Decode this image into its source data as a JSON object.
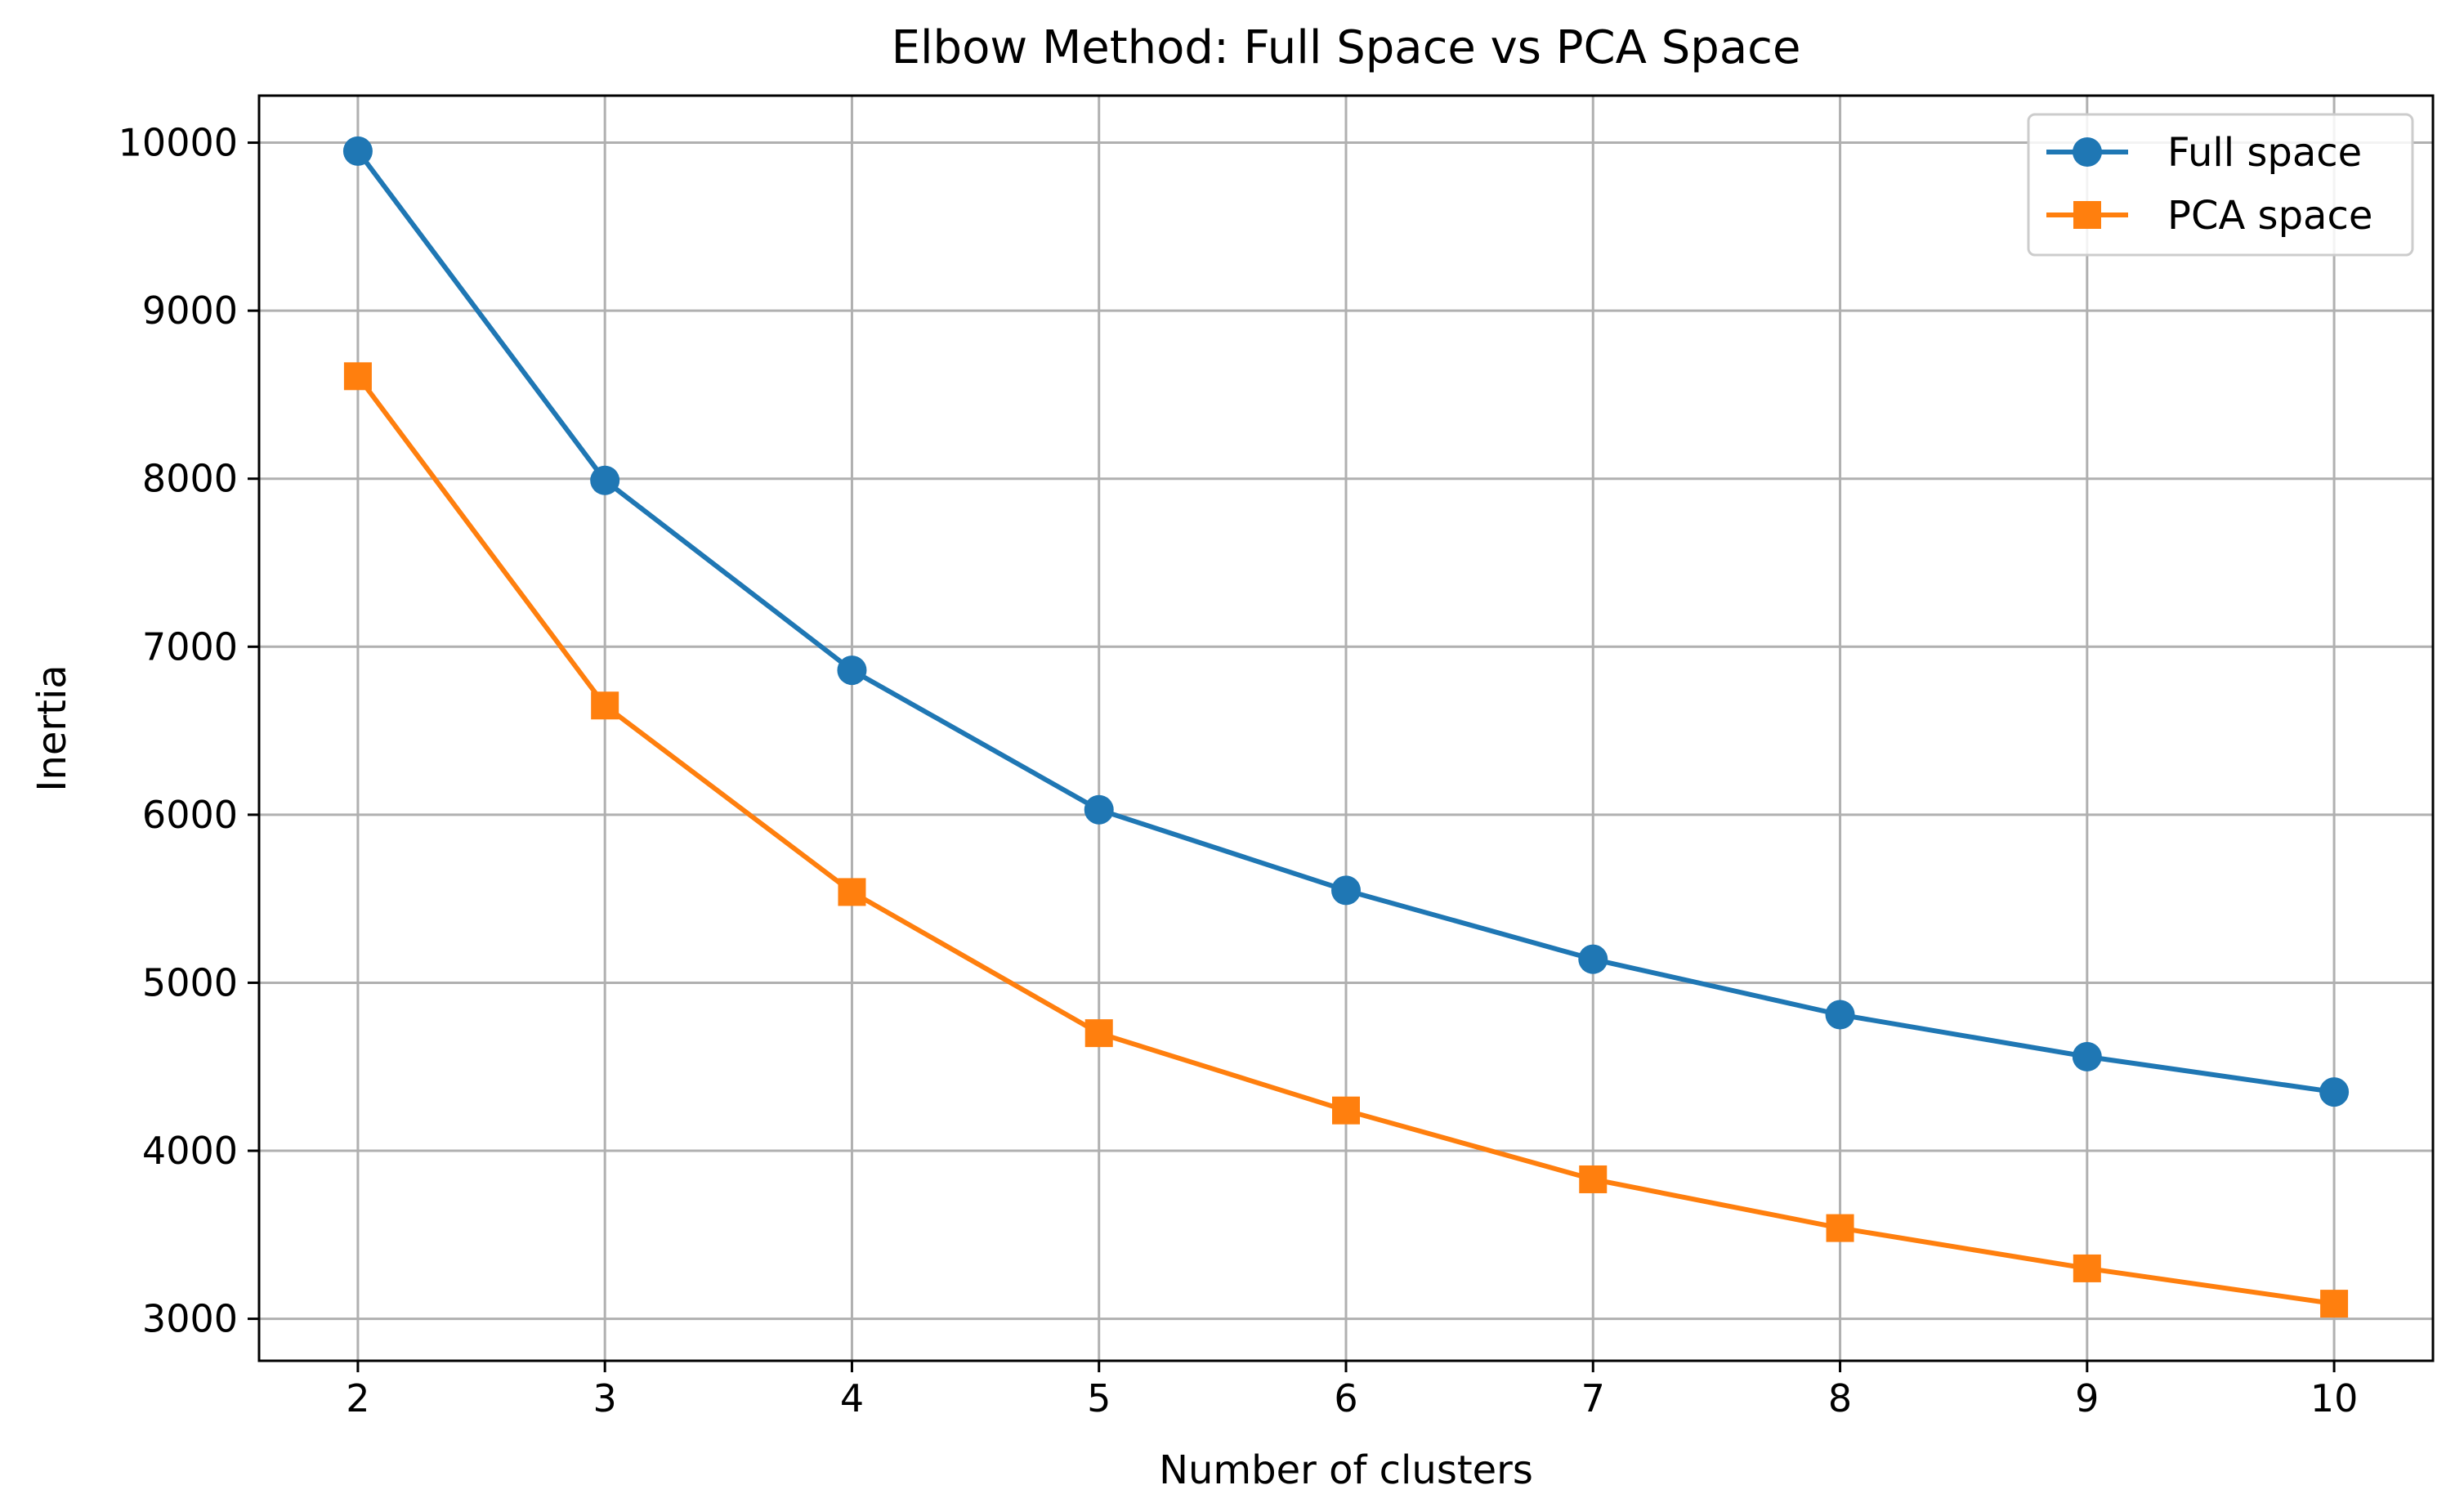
{
  "chart_data": {
    "type": "line",
    "title": "Elbow Method: Full Space vs PCA Space",
    "xlabel": "Number of clusters",
    "ylabel": "Inertia",
    "x": [
      2,
      3,
      4,
      5,
      6,
      7,
      8,
      9,
      10
    ],
    "xlim": [
      1.6,
      10.4
    ],
    "ylim": [
      2750,
      10280
    ],
    "xticks": [
      2,
      3,
      4,
      5,
      6,
      7,
      8,
      9,
      10
    ],
    "yticks": [
      3000,
      4000,
      5000,
      6000,
      7000,
      8000,
      9000,
      10000
    ],
    "grid": true,
    "legend_position": "top-right",
    "series": [
      {
        "name": "Full space",
        "marker": "circle",
        "color": "#1f77b4",
        "values": [
          9950,
          7990,
          6860,
          6030,
          5550,
          5140,
          4810,
          4560,
          4350
        ]
      },
      {
        "name": "PCA space",
        "marker": "square",
        "color": "#ff7f0e",
        "values": [
          8610,
          6650,
          5540,
          4700,
          4240,
          3830,
          3540,
          3300,
          3090
        ]
      }
    ]
  }
}
